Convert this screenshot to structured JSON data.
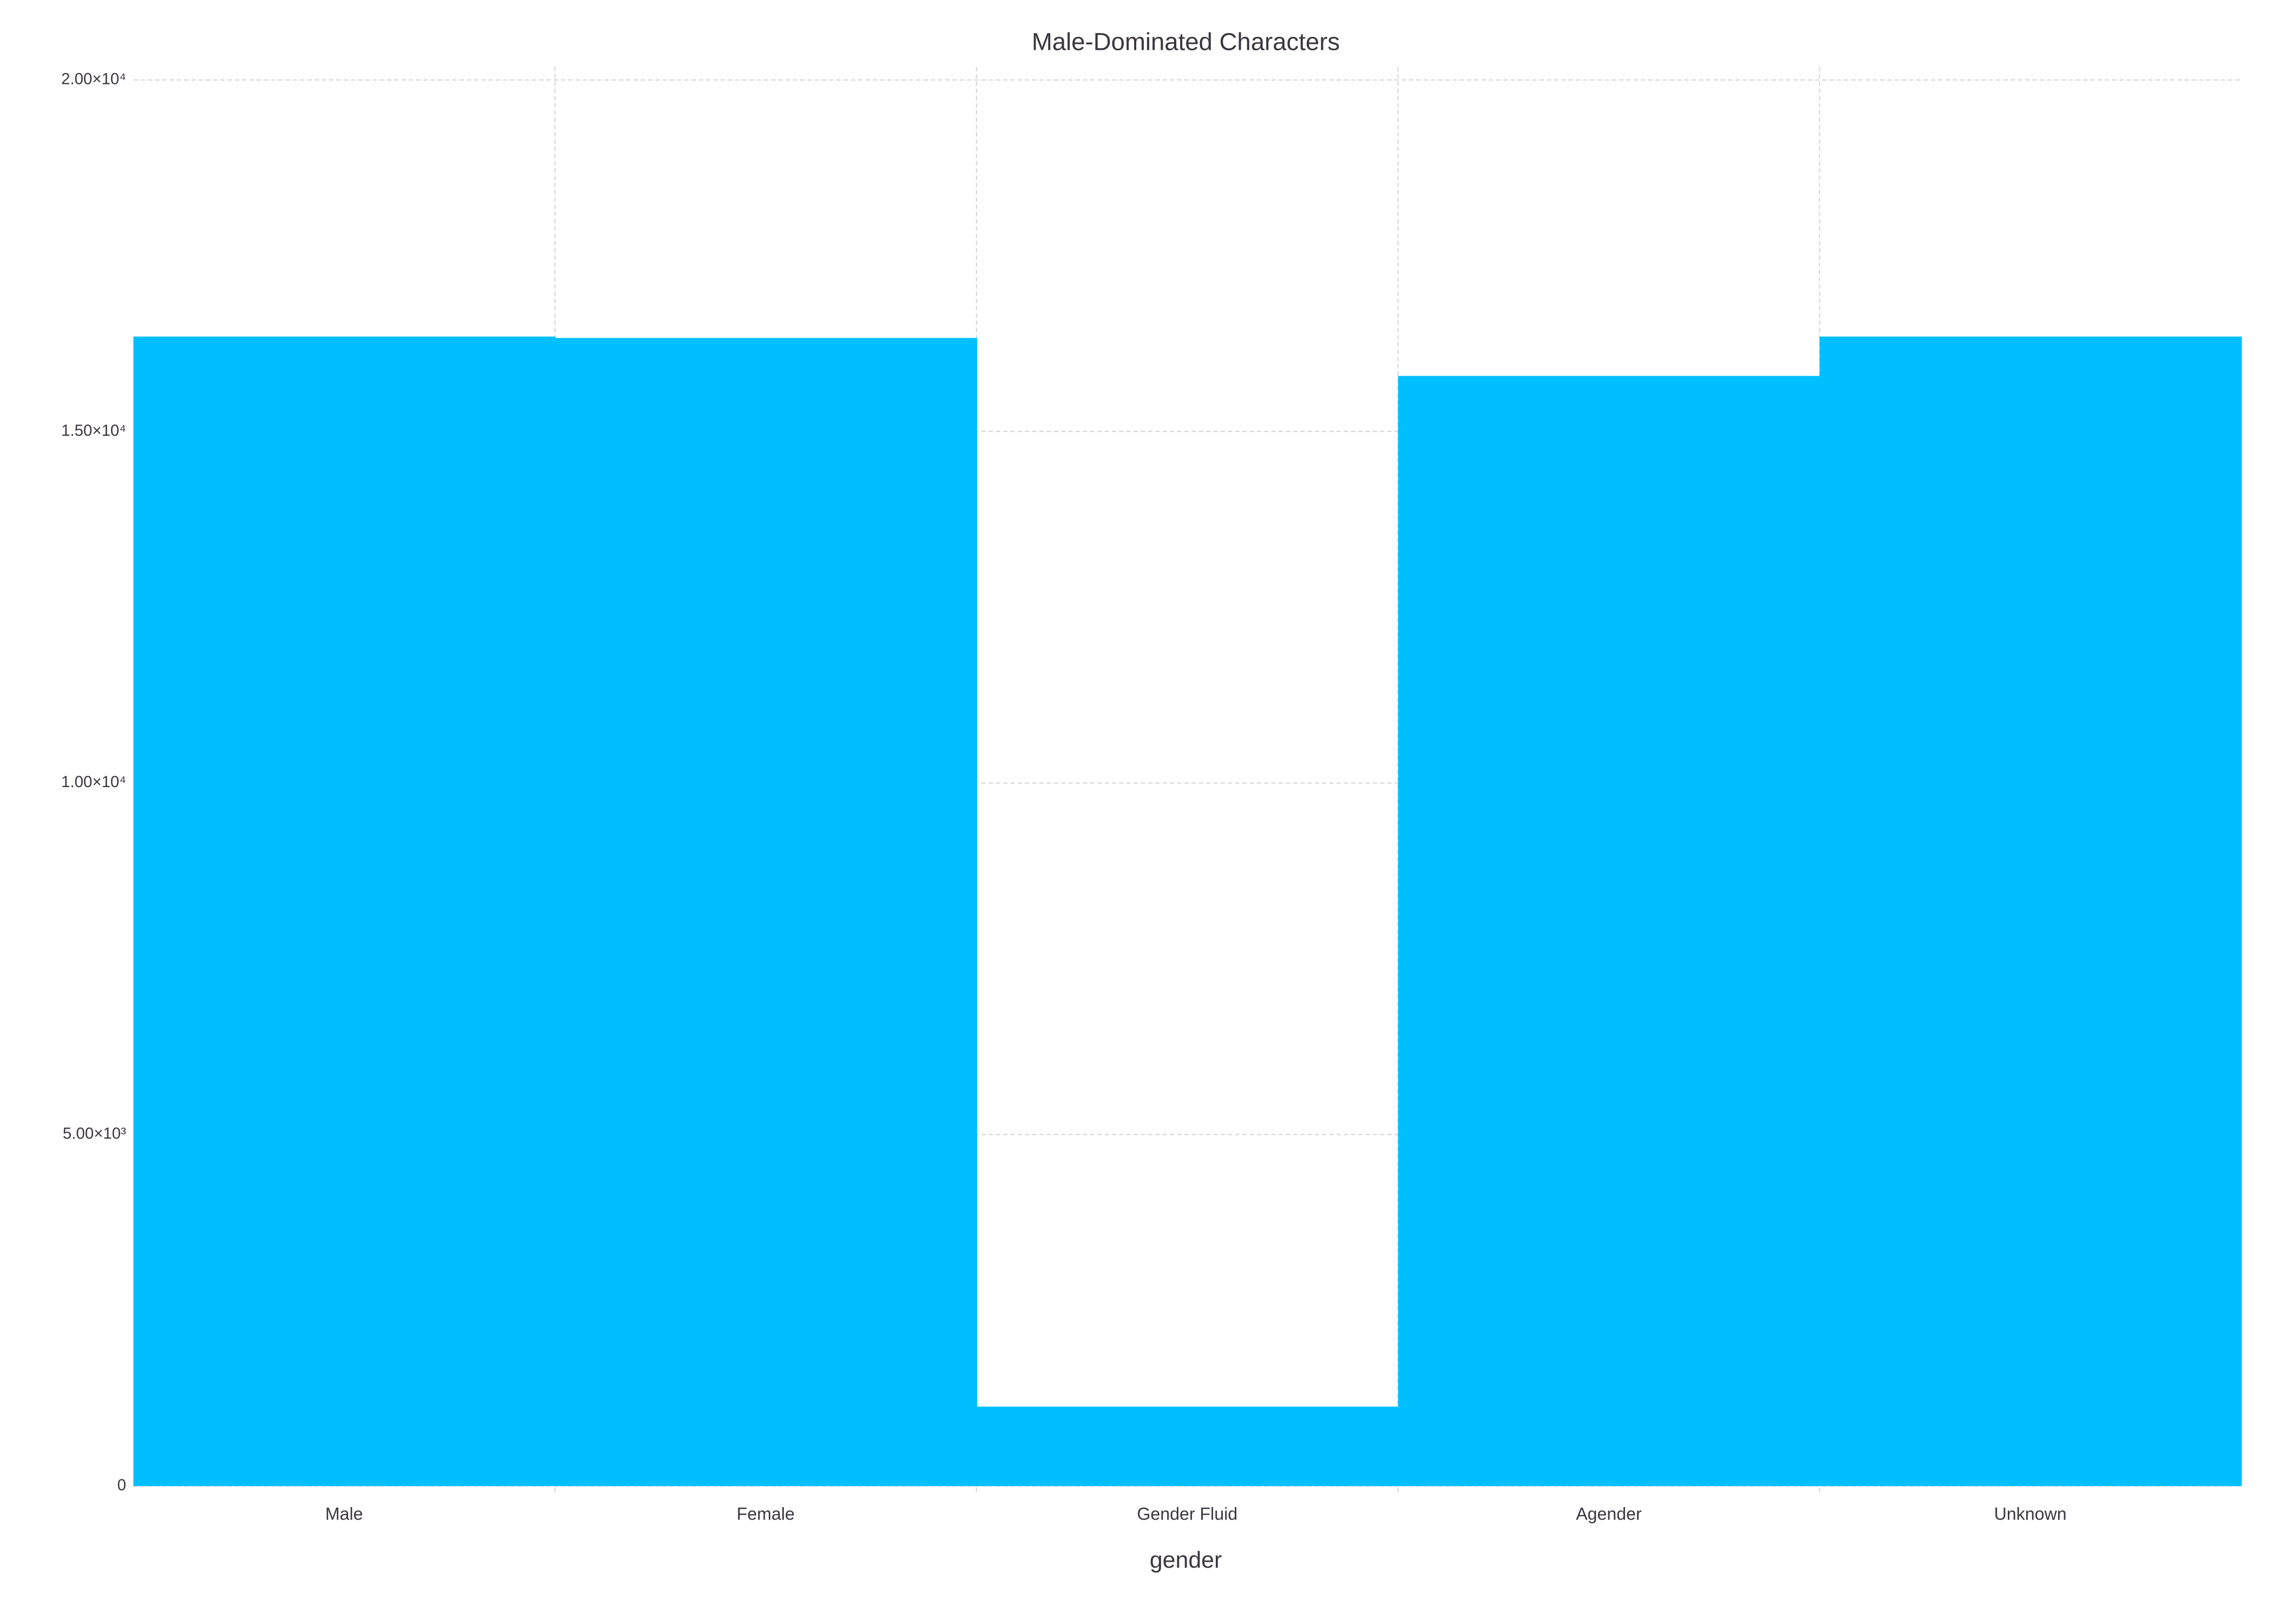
{
  "chart_data": {
    "type": "bar",
    "title": "Male-Dominated Characters",
    "x_label": "gender",
    "categories": [
      "Male",
      "Female",
      "Gender Fluid",
      "Agender",
      "Unknown"
    ],
    "values": [
      16350,
      16330,
      1130,
      15790,
      16350
    ],
    "color": "#00bfff",
    "ylim": [
      0,
      20000
    ],
    "yticks": [
      0,
      {
        "value": 5000,
        "label": "5.00×10³"
      },
      {
        "value": 10000,
        "label": "1.00×10⁴"
      },
      {
        "value": 15000,
        "label": "1.50×10⁴"
      },
      {
        "value": 20000,
        "label": "2.00×10⁴"
      }
    ],
    "grid": true
  }
}
